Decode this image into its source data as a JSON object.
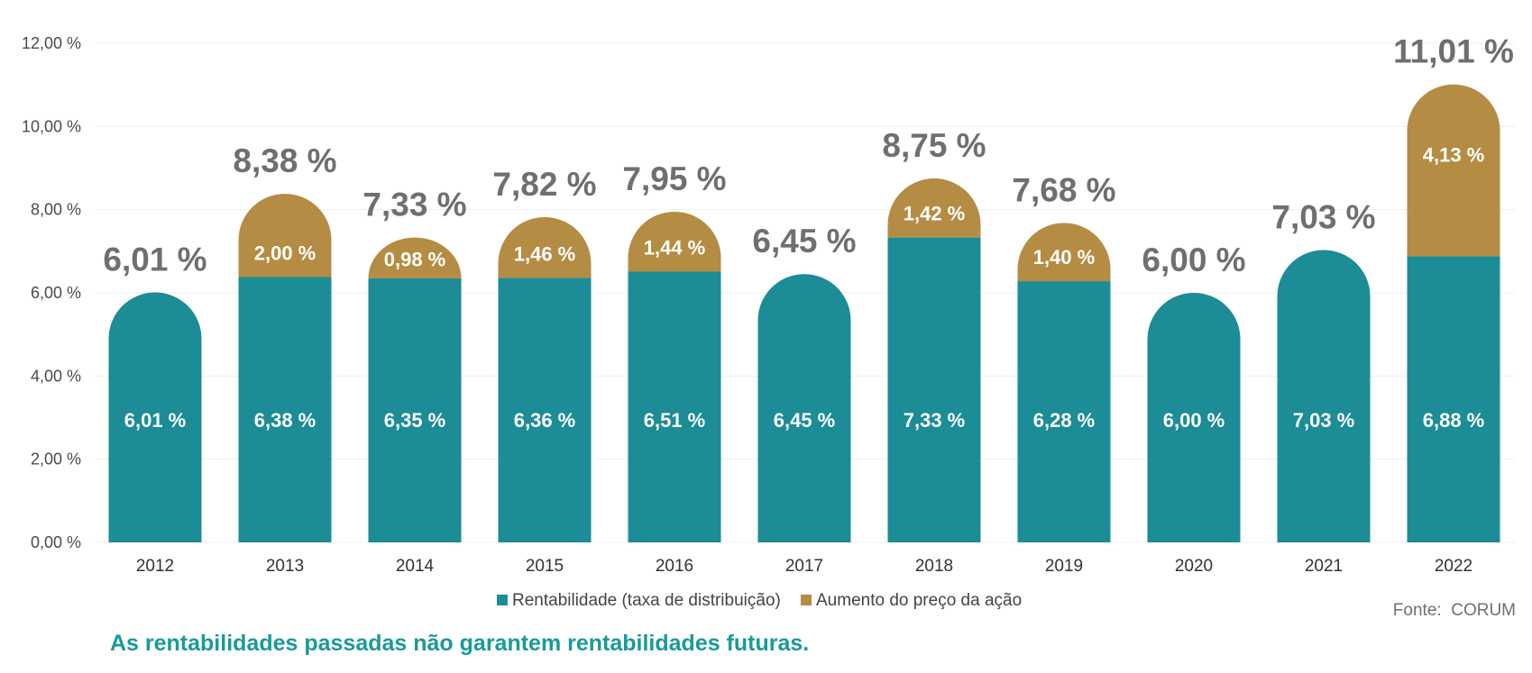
{
  "chart_data": {
    "type": "bar",
    "stacked": true,
    "categories": [
      "2012",
      "2013",
      "2014",
      "2015",
      "2016",
      "2017",
      "2018",
      "2019",
      "2020",
      "2021",
      "2022"
    ],
    "series": [
      {
        "name": "Rentabilidade (taxa de distribuição)",
        "color": "#1c8c96",
        "values": [
          6.01,
          6.38,
          6.35,
          6.36,
          6.51,
          6.45,
          7.33,
          6.28,
          6.0,
          7.03,
          6.88
        ],
        "labels": [
          "6,01 %",
          "6,38 %",
          "6,35 %",
          "6,36 %",
          "6,51 %",
          "6,45 %",
          "7,33 %",
          "6,28 %",
          "6,00 %",
          "7,03 %",
          "6,88 %"
        ]
      },
      {
        "name": "Aumento do preço da ação",
        "color": "#b58c43",
        "values": [
          0,
          2.0,
          0.98,
          1.46,
          1.44,
          0,
          1.42,
          1.4,
          0,
          0,
          4.13
        ],
        "labels": [
          "",
          "2,00 %",
          "0,98 %",
          "1,46 %",
          "1,44 %",
          "",
          "1,42 %",
          "1,40 %",
          "",
          "",
          "4,13 %"
        ]
      }
    ],
    "totals": [
      6.01,
      8.38,
      7.33,
      7.82,
      7.95,
      6.45,
      8.75,
      7.68,
      6.0,
      7.03,
      11.01
    ],
    "total_labels": [
      "6,01 %",
      "8,38 %",
      "7,33 %",
      "7,82 %",
      "7,95 %",
      "6,45 %",
      "8,75 %",
      "7,68 %",
      "6,00 %",
      "7,03 %",
      "11,01 %"
    ],
    "ylim": [
      0,
      12
    ],
    "yticks": [
      0,
      2,
      4,
      6,
      8,
      10,
      12
    ],
    "ytick_labels": [
      "0,00 %",
      "2,00 %",
      "4,00 %",
      "6,00 %",
      "8,00 %",
      "10,00 %",
      "12,00 %"
    ],
    "grid": true,
    "legend_position": "bottom-center",
    "title": "",
    "xlabel": "",
    "ylabel": ""
  },
  "source": "Fonte:  CORUM",
  "disclaimer": "As rentabilidades passadas não garantem rentabilidades futuras."
}
